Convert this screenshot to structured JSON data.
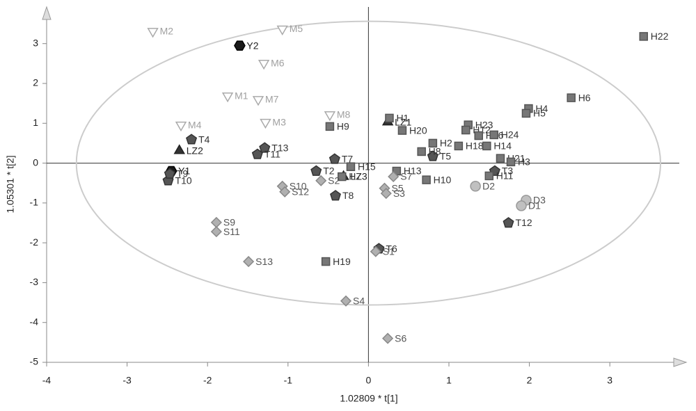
{
  "chart_data": {
    "type": "scatter",
    "xlabel": "1.02809 * t[1]",
    "ylabel": "1.05301 * t[2]",
    "xlim": [
      -4,
      3.95
    ],
    "ylim": [
      -5,
      3.92
    ],
    "xticks": [
      -4,
      -3,
      -2,
      -1,
      0,
      1,
      2,
      3
    ],
    "yticks": [
      -5,
      -4,
      -3,
      -2,
      -1,
      0,
      1,
      2,
      3
    ],
    "ellipse": {
      "rx": 3.63,
      "ry": 3.56
    },
    "series": [
      {
        "marker": "triangle-down",
        "color": "#ffffff",
        "stroke": "#aaaaaa",
        "label_color": "#a0a0a0",
        "labels": [
          "M2",
          "M5",
          "M6",
          "M1",
          "M7",
          "M4",
          "M3",
          "M8"
        ],
        "x": [
          -2.68,
          -1.07,
          -1.3,
          -1.75,
          -1.37,
          -2.33,
          -1.28,
          -0.48
        ],
        "y": [
          3.31,
          3.37,
          2.51,
          1.69,
          1.6,
          0.96,
          1.03,
          1.22
        ]
      },
      {
        "marker": "hexagon",
        "color": "#1a1a1a",
        "stroke": "#000000",
        "label_color": "#222222",
        "labels": [
          "Y2",
          "Y1"
        ],
        "x": [
          -1.6,
          -2.45
        ],
        "y": [
          2.95,
          -0.2
        ]
      },
      {
        "marker": "pentagon",
        "color": "#555555",
        "stroke": "#333333",
        "label_color": "#333333",
        "labels": [
          "T4",
          "T13",
          "T11",
          "T7",
          "T2",
          "T8",
          "T10",
          "T9",
          "T5",
          "T3",
          "T12",
          "T6"
        ],
        "x": [
          -2.2,
          -1.29,
          -1.38,
          -0.42,
          -0.65,
          -0.41,
          -2.49,
          -2.47,
          0.8,
          1.57,
          1.74,
          0.13
        ],
        "y": [
          0.59,
          0.38,
          0.22,
          0.1,
          -0.2,
          -0.82,
          -0.44,
          -0.27,
          0.17,
          -0.2,
          -1.5,
          -2.15
        ]
      },
      {
        "marker": "triangle",
        "color": "#333333",
        "stroke": "#222222",
        "label_color": "#222222",
        "labels": [
          "LZ1",
          "LZ2",
          "LZ3"
        ],
        "x": [
          0.24,
          -2.35,
          -0.31
        ],
        "y": [
          1.03,
          0.31,
          -0.34
        ]
      },
      {
        "marker": "square",
        "color": "#777777",
        "stroke": "#555555",
        "label_color": "#333333",
        "labels": [
          "H22",
          "H6",
          "H4",
          "H5",
          "H1",
          "H9",
          "H20",
          "H23",
          "H12",
          "H16",
          "H24",
          "H2",
          "H18",
          "H14",
          "H8",
          "H21",
          "H3",
          "H13",
          "H15",
          "H7",
          "H10",
          "H11",
          "H19"
        ],
        "x": [
          3.42,
          2.52,
          1.99,
          1.96,
          0.26,
          -0.48,
          0.42,
          1.24,
          1.21,
          1.37,
          1.56,
          0.8,
          1.12,
          1.47,
          0.66,
          1.64,
          1.77,
          0.35,
          -0.22,
          -0.33,
          0.72,
          1.5,
          -0.53
        ],
        "y": [
          3.18,
          1.64,
          1.37,
          1.25,
          1.13,
          0.92,
          0.82,
          0.96,
          0.83,
          0.69,
          0.71,
          0.5,
          0.43,
          0.43,
          0.29,
          0.12,
          0.03,
          -0.2,
          -0.09,
          -0.34,
          -0.42,
          -0.32,
          -2.47
        ]
      },
      {
        "marker": "diamond",
        "color": "#b0b0b0",
        "stroke": "#888888",
        "label_color": "#555555",
        "labels": [
          "S10",
          "S12",
          "S2",
          "S7",
          "S5",
          "S3",
          "S9",
          "S11",
          "S13",
          "S1",
          "S4",
          "S6"
        ],
        "x": [
          -1.07,
          -1.04,
          -0.59,
          0.31,
          0.2,
          0.22,
          -1.89,
          -1.89,
          -1.49,
          0.09,
          -0.28,
          0.24
        ],
        "y": [
          -0.58,
          -0.72,
          -0.44,
          -0.34,
          -0.63,
          -0.76,
          -1.49,
          -1.72,
          -2.47,
          -2.22,
          -3.46,
          -4.4
        ]
      },
      {
        "marker": "circle",
        "color": "#c0c0c0",
        "stroke": "#999999",
        "label_color": "#555555",
        "labels": [
          "D2",
          "D3",
          "D1"
        ],
        "x": [
          1.33,
          1.96,
          1.9
        ],
        "y": [
          -0.58,
          -0.93,
          -1.07
        ]
      }
    ]
  }
}
